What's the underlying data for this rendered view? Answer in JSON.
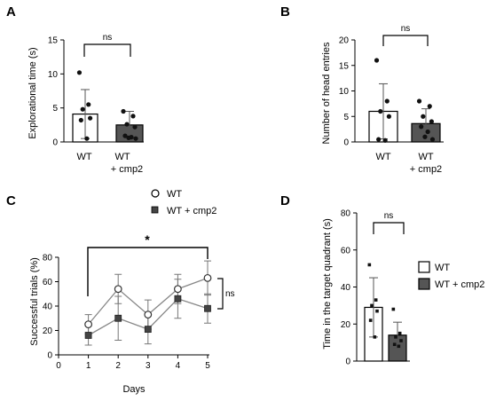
{
  "colors": {
    "axis": "#000000",
    "wt_fill": "#ffffff",
    "cmp2_fill": "#555555",
    "line": "#888888",
    "dot": "#111111"
  },
  "panels": {
    "A": {
      "letter": "A",
      "ylabel": "Explorational time (s)",
      "xcat1": "WT",
      "xcat2a": "WT",
      "xcat2b": "+ cmp2",
      "sig": "ns"
    },
    "B": {
      "letter": "B",
      "ylabel": "Number of head entries",
      "xcat1": "WT",
      "xcat2a": "WT",
      "xcat2b": "+ cmp2",
      "sig": "ns"
    },
    "C": {
      "letter": "C",
      "ylabel": "Successful trials (%)",
      "xlabel": "Days",
      "legend1": "WT",
      "legend2": "WT + cmp2",
      "sig_star": "*",
      "sig_ns": "ns"
    },
    "D": {
      "letter": "D",
      "ylabel": "Time in the target quadrant (s)",
      "legend1": "WT",
      "legend2": "WT + cmp2",
      "sig": "ns"
    }
  },
  "chart_data": [
    {
      "panel": "A",
      "type": "bar",
      "categories": [
        "WT",
        "WT + cmp2"
      ],
      "values": [
        4.1,
        2.5
      ],
      "errors": [
        3.6,
        2.0
      ],
      "points": [
        [
          10.2,
          5.5,
          4.8,
          3.5,
          3.2,
          0.5
        ],
        [
          4.5,
          3.8,
          2.6,
          2.2,
          0.9,
          0.7,
          0.6,
          0.5
        ]
      ],
      "ylim": [
        0,
        15
      ],
      "yticks": [
        0,
        5,
        10,
        15
      ],
      "ylabel": "Explorational time (s)",
      "annotation": "ns"
    },
    {
      "panel": "B",
      "type": "bar",
      "categories": [
        "WT",
        "WT + cmp2"
      ],
      "values": [
        6.0,
        3.6
      ],
      "errors": [
        5.4,
        2.9
      ],
      "points": [
        [
          16,
          8,
          6,
          5,
          0.5,
          0.3
        ],
        [
          8,
          7,
          5,
          4,
          3,
          2,
          1,
          0.5
        ]
      ],
      "ylim": [
        0,
        20
      ],
      "yticks": [
        0,
        5,
        10,
        15,
        20
      ],
      "ylabel": "Number of head entries",
      "annotation": "ns"
    },
    {
      "panel": "C",
      "type": "line",
      "x": [
        1,
        2,
        3,
        4,
        5
      ],
      "xlim": [
        0,
        5
      ],
      "xticks": [
        0,
        1,
        2,
        3,
        4,
        5
      ],
      "ylim": [
        0,
        80
      ],
      "yticks": [
        0,
        20,
        40,
        60,
        80
      ],
      "series": [
        {
          "name": "WT",
          "marker": "circle",
          "values": [
            25,
            54,
            33,
            54,
            63
          ],
          "errors": [
            8,
            12,
            12,
            12,
            14
          ]
        },
        {
          "name": "WT + cmp2",
          "marker": "square",
          "values": [
            16,
            30,
            21,
            46,
            38
          ],
          "errors": [
            8,
            18,
            12,
            16,
            12
          ]
        }
      ],
      "xlabel": "Days",
      "ylabel": "Successful trials (%)",
      "annotations": [
        "*",
        "ns"
      ]
    },
    {
      "panel": "D",
      "type": "bar",
      "categories": [
        "WT",
        "WT + cmp2"
      ],
      "values": [
        29,
        14
      ],
      "errors": [
        16,
        7
      ],
      "points": [
        [
          52,
          33,
          30,
          27,
          22,
          13
        ],
        [
          28,
          15,
          13,
          11,
          9,
          8
        ]
      ],
      "ylim": [
        0,
        80
      ],
      "yticks": [
        0,
        20,
        40,
        60,
        80
      ],
      "ylabel": "Time in the target quadrant (s)",
      "annotation": "ns",
      "legend": [
        "WT",
        "WT + cmp2"
      ]
    }
  ]
}
